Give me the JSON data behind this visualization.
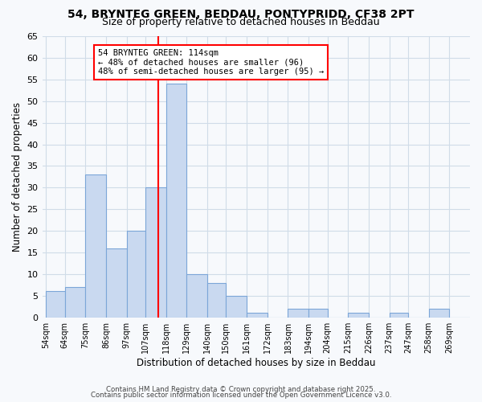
{
  "title": "54, BRYNTEG GREEN, BEDDAU, PONTYPRIDD, CF38 2PT",
  "subtitle": "Size of property relative to detached houses in Beddau",
  "xlabel": "Distribution of detached houses by size in Beddau",
  "ylabel": "Number of detached properties",
  "bin_labels": [
    "54sqm",
    "64sqm",
    "75sqm",
    "86sqm",
    "97sqm",
    "107sqm",
    "118sqm",
    "129sqm",
    "140sqm",
    "150sqm",
    "161sqm",
    "172sqm",
    "183sqm",
    "194sqm",
    "204sqm",
    "215sqm",
    "226sqm",
    "237sqm",
    "247sqm",
    "258sqm",
    "269sqm"
  ],
  "bin_edges": [
    54,
    64,
    75,
    86,
    97,
    107,
    118,
    129,
    140,
    150,
    161,
    172,
    183,
    194,
    204,
    215,
    226,
    237,
    247,
    258,
    269,
    280
  ],
  "bar_values": [
    6,
    7,
    33,
    16,
    20,
    30,
    54,
    10,
    8,
    5,
    1,
    0,
    2,
    2,
    0,
    1,
    0,
    1,
    0,
    2,
    0
  ],
  "bar_color": "#c9d9f0",
  "bar_edge_color": "#7ca6d8",
  "grid_color": "#d0dce8",
  "property_line_x": 114,
  "property_line_color": "red",
  "annotation_text": "54 BRYNTEG GREEN: 114sqm\n← 48% of detached houses are smaller (96)\n48% of semi-detached houses are larger (95) →",
  "ylim": [
    0,
    65
  ],
  "yticks": [
    0,
    5,
    10,
    15,
    20,
    25,
    30,
    35,
    40,
    45,
    50,
    55,
    60,
    65
  ],
  "footer_line1": "Contains HM Land Registry data © Crown copyright and database right 2025.",
  "footer_line2": "Contains public sector information licensed under the Open Government Licence v3.0.",
  "bg_color": "#f7f9fc"
}
